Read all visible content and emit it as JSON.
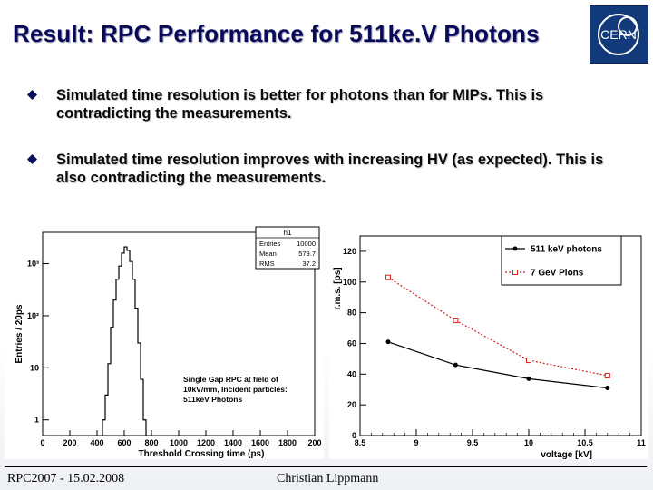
{
  "slide": {
    "title": "Result: RPC Performance for 511ke.V Photons",
    "logo_text": "CERN",
    "bullets": [
      "Simulated time resolution is better for photons than for MIPs. This is contradicting the measurements.",
      "Simulated time resolution improves with increasing HV (as expected). This is also contradicting the measurements."
    ],
    "footer_left": "RPC2007 - 15.02.2008",
    "footer_center": "Christian Lippmann"
  },
  "colors": {
    "title": "#0a0a5a",
    "photons": "#000000",
    "pions": "#d42020",
    "logo_bg": "#123a7a"
  },
  "chart_data": [
    {
      "type": "bar",
      "subtype": "histogram",
      "xlabel": "Threshold Crossing time (ps)",
      "ylabel": "Entries / 20ps",
      "yscale": "log",
      "xlim": [
        0,
        2000
      ],
      "ylim": [
        0.5,
        4000
      ],
      "xticks": [
        "0",
        "200",
        "400",
        "600",
        "800",
        "1000",
        "1200",
        "1400",
        "1600",
        "1800",
        "200"
      ],
      "yticks": [
        {
          "value": 1,
          "label": "1"
        },
        {
          "value": 10,
          "label": "10"
        },
        {
          "value": 100,
          "label": "10²"
        },
        {
          "value": 1000,
          "label": "10³"
        }
      ],
      "bins": [
        {
          "x": 440,
          "y": 1
        },
        {
          "x": 460,
          "y": 3
        },
        {
          "x": 480,
          "y": 12
        },
        {
          "x": 500,
          "y": 60
        },
        {
          "x": 520,
          "y": 200
        },
        {
          "x": 540,
          "y": 500
        },
        {
          "x": 560,
          "y": 900
        },
        {
          "x": 580,
          "y": 1600
        },
        {
          "x": 600,
          "y": 2100
        },
        {
          "x": 620,
          "y": 1800
        },
        {
          "x": 640,
          "y": 1100
        },
        {
          "x": 660,
          "y": 500
        },
        {
          "x": 680,
          "y": 140
        },
        {
          "x": 700,
          "y": 30
        },
        {
          "x": 720,
          "y": 6
        },
        {
          "x": 740,
          "y": 1
        }
      ],
      "stats": {
        "name": "h1",
        "rows": [
          {
            "key": "Entries",
            "value": "10000"
          },
          {
            "key": "Mean",
            "value": "579.7"
          },
          {
            "key": "RMS",
            "value": "37.2"
          }
        ]
      },
      "annotation": [
        "Single Gap RPC at field of",
        "10kV/mm, Incident particles:",
        "511keV Photons"
      ]
    },
    {
      "type": "line",
      "xlabel": "voltage [kV]",
      "ylabel": "r.m.s. [ps]",
      "xlim": [
        8.5,
        11
      ],
      "ylim": [
        0,
        130
      ],
      "xticks": [
        "8.5",
        "9",
        "9.5",
        "10",
        "10.5",
        "11"
      ],
      "yticks": [
        "0",
        "20",
        "40",
        "60",
        "80",
        "100",
        "120"
      ],
      "series": [
        {
          "name": "511 keV photons",
          "style": "solid",
          "marker": "dot",
          "x": [
            8.75,
            9.35,
            10.0,
            10.7
          ],
          "y": [
            61,
            46,
            37,
            31
          ]
        },
        {
          "name": "7 GeV Pions",
          "style": "dashed",
          "marker": "square",
          "x": [
            8.75,
            9.35,
            10.0,
            10.7
          ],
          "y": [
            103,
            75,
            49,
            39
          ]
        }
      ]
    }
  ]
}
